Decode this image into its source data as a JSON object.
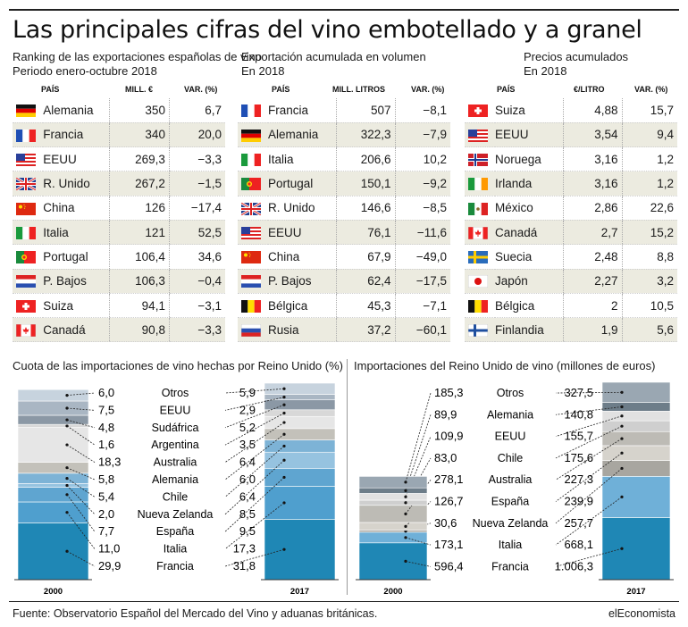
{
  "title": "Las principales cifras del vino embotellado y a granel",
  "colors": {
    "stripe": "#ecebe0",
    "accent": "#1f87b5"
  },
  "tables": [
    {
      "subtitle": "Ranking de las exportaciones españolas de vino",
      "subtitle2": "Periodo enero-octubre 2018",
      "headers": [
        "PAÍS",
        "MILL. €",
        "VAR. (%)"
      ],
      "rows": [
        {
          "flag": "germany-flag-icon",
          "country": "Alemania",
          "v1": "350",
          "v2": "6,7"
        },
        {
          "flag": "france-flag-icon",
          "country": "Francia",
          "v1": "340",
          "v2": "20,0"
        },
        {
          "flag": "usa-flag-icon",
          "country": "EEUU",
          "v1": "269,3",
          "v2": "−3,3"
        },
        {
          "flag": "uk-flag-icon",
          "country": "R. Unido",
          "v1": "267,2",
          "v2": "−1,5"
        },
        {
          "flag": "china-flag-icon",
          "country": "China",
          "v1": "126",
          "v2": "−17,4"
        },
        {
          "flag": "italy-flag-icon",
          "country": "Italia",
          "v1": "121",
          "v2": "52,5"
        },
        {
          "flag": "portugal-flag-icon",
          "country": "Portugal",
          "v1": "106,4",
          "v2": "34,6"
        },
        {
          "flag": "netherlands-flag-icon",
          "country": "P. Bajos",
          "v1": "106,3",
          "v2": "−0,4"
        },
        {
          "flag": "switzerland-flag-icon",
          "country": "Suiza",
          "v1": "94,1",
          "v2": "−3,1"
        },
        {
          "flag": "canada-flag-icon",
          "country": "Canadá",
          "v1": "90,8",
          "v2": "−3,3"
        }
      ]
    },
    {
      "subtitle": "Exportación acumulada en volumen",
      "subtitle2": "En 2018",
      "headers": [
        "PAÍS",
        "MILL. LITROS",
        "VAR. (%)"
      ],
      "rows": [
        {
          "flag": "france-flag-icon",
          "country": "Francia",
          "v1": "507",
          "v2": "−8,1"
        },
        {
          "flag": "germany-flag-icon",
          "country": "Alemania",
          "v1": "322,3",
          "v2": "−7,9"
        },
        {
          "flag": "italy-flag-icon",
          "country": "Italia",
          "v1": "206,6",
          "v2": "10,2"
        },
        {
          "flag": "portugal-flag-icon",
          "country": "Portugal",
          "v1": "150,1",
          "v2": "−9,2"
        },
        {
          "flag": "uk-flag-icon",
          "country": "R. Unido",
          "v1": "146,6",
          "v2": "−8,5"
        },
        {
          "flag": "usa-flag-icon",
          "country": "EEUU",
          "v1": "76,1",
          "v2": "−11,6"
        },
        {
          "flag": "china-flag-icon",
          "country": "China",
          "v1": "67,9",
          "v2": "−49,0"
        },
        {
          "flag": "netherlands-flag-icon",
          "country": "P. Bajos",
          "v1": "62,4",
          "v2": "−17,5"
        },
        {
          "flag": "belgium-flag-icon",
          "country": "Bélgica",
          "v1": "45,3",
          "v2": "−7,1"
        },
        {
          "flag": "russia-flag-icon",
          "country": "Rusia",
          "v1": "37,2",
          "v2": "−60,1"
        }
      ]
    },
    {
      "subtitle": "Precios acumulados",
      "subtitle2": "En 2018",
      "headers": [
        "PAÍS",
        "€/LITRO",
        "VAR. (%)"
      ],
      "rows": [
        {
          "flag": "switzerland-flag-icon",
          "country": "Suiza",
          "v1": "4,88",
          "v2": "15,7"
        },
        {
          "flag": "usa-flag-icon",
          "country": "EEUU",
          "v1": "3,54",
          "v2": "9,4"
        },
        {
          "flag": "norway-flag-icon",
          "country": "Noruega",
          "v1": "3,16",
          "v2": "1,2"
        },
        {
          "flag": "ireland-flag-icon",
          "country": "Irlanda",
          "v1": "3,16",
          "v2": "1,2"
        },
        {
          "flag": "mexico-flag-icon",
          "country": "México",
          "v1": "2,86",
          "v2": "22,6"
        },
        {
          "flag": "canada-flag-icon",
          "country": "Canadá",
          "v1": "2,7",
          "v2": "15,2"
        },
        {
          "flag": "sweden-flag-icon",
          "country": "Suecia",
          "v1": "2,48",
          "v2": "8,8"
        },
        {
          "flag": "japan-flag-icon",
          "country": "Japón",
          "v1": "2,27",
          "v2": "3,2"
        },
        {
          "flag": "belgium-flag-icon",
          "country": "Bélgica",
          "v1": "2",
          "v2": "10,5"
        },
        {
          "flag": "finland-flag-icon",
          "country": "Finlandia",
          "v1": "1,9",
          "v2": "5,6"
        }
      ]
    }
  ],
  "chart_data": [
    {
      "type": "bar",
      "stacked": true,
      "title": "Cuota de las importaciones de vino hechas por Reino Unido (%)",
      "categories": [
        "2000",
        "2017"
      ],
      "series": [
        {
          "name": "Otros",
          "values": [
            6.0,
            5.9
          ],
          "labels": [
            "6,0",
            "5,9"
          ]
        },
        {
          "name": "EEUU",
          "values": [
            7.5,
            2.9
          ],
          "labels": [
            "7,5",
            "2,9"
          ]
        },
        {
          "name": "Sudáfrica",
          "values": [
            4.8,
            5.2
          ],
          "labels": [
            "4,8",
            "5,2"
          ]
        },
        {
          "name": "Argentina",
          "values": [
            1.6,
            3.5
          ],
          "labels": [
            "1,6",
            "3,5"
          ]
        },
        {
          "name": "Australia",
          "values": [
            18.3,
            6.4
          ],
          "labels": [
            "18,3",
            "6,4"
          ]
        },
        {
          "name": "Alemania",
          "values": [
            5.8,
            6.0
          ],
          "labels": [
            "5,8",
            "6,0"
          ]
        },
        {
          "name": "Chile",
          "values": [
            5.4,
            6.4
          ],
          "labels": [
            "5,4",
            "6,4"
          ]
        },
        {
          "name": "Nueva Zelanda",
          "values": [
            2.0,
            8.5
          ],
          "labels": [
            "2,0",
            "8,5"
          ]
        },
        {
          "name": "España",
          "values": [
            7.7,
            9.5
          ],
          "labels": [
            "7,7",
            "9,5"
          ]
        },
        {
          "name": "Italia",
          "values": [
            11.0,
            17.3
          ],
          "labels": [
            "11,0",
            "17,3"
          ]
        },
        {
          "name": "Francia",
          "values": [
            29.9,
            31.8
          ],
          "labels": [
            "29,9",
            "31,8"
          ]
        }
      ]
    },
    {
      "type": "bar",
      "stacked": true,
      "title": "Importaciones del Reino Unido de vino (millones de euros)",
      "categories": [
        "2000",
        "2017"
      ],
      "series": [
        {
          "name": "Otros",
          "values": [
            185.3,
            327.5
          ],
          "labels": [
            "185,3",
            "327,5"
          ]
        },
        {
          "name": "Alemania",
          "values": [
            89.9,
            140.8
          ],
          "labels": [
            "89,9",
            "140,8"
          ]
        },
        {
          "name": "EEUU",
          "values": [
            109.9,
            155.7
          ],
          "labels": [
            "109,9",
            "155,7"
          ]
        },
        {
          "name": "Chile",
          "values": [
            83.0,
            175.6
          ],
          "labels": [
            "83,0",
            "175,6"
          ]
        },
        {
          "name": "Australia",
          "values": [
            278.1,
            227.3
          ],
          "labels": [
            "278,1",
            "227,3"
          ]
        },
        {
          "name": "España",
          "values": [
            126.7,
            239.9
          ],
          "labels": [
            "126,7",
            "239,9"
          ]
        },
        {
          "name": "Nueva Zelanda",
          "values": [
            30.6,
            257.7
          ],
          "labels": [
            "30,6",
            "257,7"
          ]
        },
        {
          "name": "Italia",
          "values": [
            173.1,
            668.1
          ],
          "labels": [
            "173,1",
            "668,1"
          ]
        },
        {
          "name": "Francia",
          "values": [
            596.4,
            1006.3
          ],
          "labels": [
            "596,4",
            "1.006,3"
          ]
        }
      ]
    }
  ],
  "footer": {
    "source": "Fuente: Observatorio Español del Mercado del Vino y aduanas británicas.",
    "brand": "elEconomista"
  }
}
